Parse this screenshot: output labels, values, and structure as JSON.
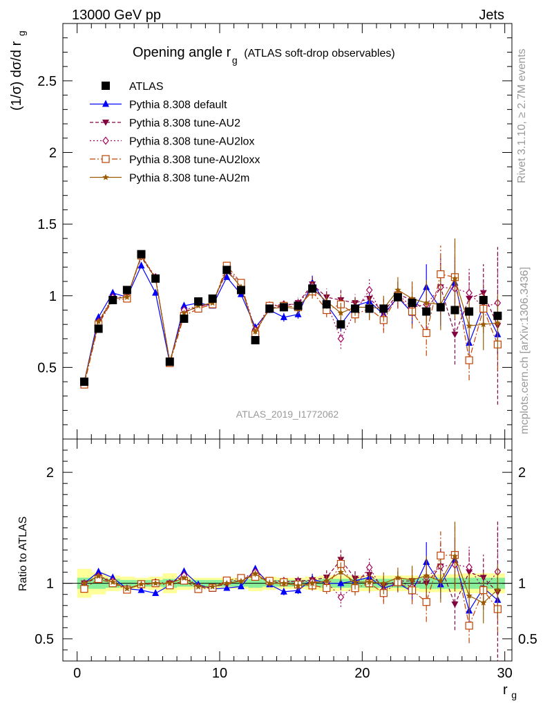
{
  "header": {
    "left": "13000 GeV pp",
    "right": "Jets"
  },
  "side_labels": {
    "rivet": "Rivet 3.1.10, ≥ 2.7M events",
    "mcplots": "mcplots.cern.ch [arXiv:1306.3436]"
  },
  "chart_data": {
    "type": "line",
    "title": "Opening angle r",
    "title_sub": "g",
    "title_suffix": "(ATLAS soft-drop observables)",
    "analysis": "ATLAS_2019_I1772062",
    "xlabel": "r",
    "xlabel_sub": "g",
    "ylabel": "(1/σ) dσ/d r",
    "ylabel_sub": "g",
    "ratio_ylabel": "Ratio to ATLAS",
    "xlim": [
      -1,
      30.5
    ],
    "ylim": [
      0,
      2.9
    ],
    "ratio_ylim": [
      0.3,
      2.3
    ],
    "x_ticks": [
      "0",
      "10",
      "20",
      "30"
    ],
    "y_ticks": [
      "0.5",
      "1",
      "1.5",
      "2",
      "2.5"
    ],
    "ratio_y_ticks": [
      "0.5",
      "1",
      "2"
    ],
    "x": [
      0.5,
      1.5,
      2.5,
      3.5,
      4.5,
      5.5,
      6.5,
      7.5,
      8.5,
      9.5,
      10.5,
      11.5,
      12.5,
      13.5,
      14.5,
      15.5,
      16.5,
      17.5,
      18.5,
      19.5,
      20.5,
      21.5,
      22.5,
      23.5,
      24.5,
      25.5,
      26.5,
      27.5,
      28.5,
      29.5
    ],
    "data": {
      "name": "ATLAS",
      "values": [
        0.4,
        0.77,
        0.97,
        1.04,
        1.29,
        1.12,
        0.54,
        0.84,
        0.96,
        0.98,
        1.18,
        1.04,
        0.69,
        0.91,
        0.92,
        0.93,
        1.05,
        0.94,
        0.8,
        0.91,
        0.91,
        0.91,
        0.99,
        0.95,
        0.89,
        0.92,
        0.9,
        0.89,
        0.97,
        0.86
      ],
      "ratio_band_inner": [
        0.05,
        0.05,
        0.04,
        0.03,
        0.03,
        0.03,
        0.04,
        0.03,
        0.03,
        0.03,
        0.03,
        0.03,
        0.04,
        0.03,
        0.03,
        0.03,
        0.03,
        0.04,
        0.04,
        0.04,
        0.04,
        0.04,
        0.04,
        0.04,
        0.05,
        0.05,
        0.05,
        0.05,
        0.05,
        0.05
      ],
      "ratio_band_outer": [
        0.13,
        0.1,
        0.07,
        0.06,
        0.05,
        0.06,
        0.09,
        0.06,
        0.05,
        0.05,
        0.05,
        0.05,
        0.07,
        0.06,
        0.05,
        0.05,
        0.06,
        0.07,
        0.07,
        0.07,
        0.07,
        0.07,
        0.07,
        0.07,
        0.08,
        0.08,
        0.08,
        0.09,
        0.09,
        0.09
      ]
    },
    "series": [
      {
        "name": "Pythia 8.308 default",
        "color": "#0000ff",
        "marker": "triangle-up",
        "dash": "",
        "values": [
          0.4,
          0.85,
          1.02,
          0.99,
          1.21,
          1.02,
          0.53,
          0.93,
          0.95,
          0.93,
          1.13,
          1.01,
          0.78,
          0.9,
          0.85,
          0.87,
          1.09,
          0.94,
          0.8,
          0.93,
          0.96,
          0.87,
          0.99,
          0.88,
          1.06,
          0.91,
          1.09,
          0.67,
          0.93,
          0.73
        ],
        "errors": [
          0.01,
          0.01,
          0.01,
          0.01,
          0.01,
          0.01,
          0.01,
          0.01,
          0.01,
          0.01,
          0.01,
          0.02,
          0.02,
          0.02,
          0.03,
          0.03,
          0.05,
          0.04,
          0.05,
          0.05,
          0.06,
          0.06,
          0.08,
          0.08,
          0.16,
          0.12,
          0.18,
          0.12,
          0.12,
          0.14
        ]
      },
      {
        "name": "Pythia 8.308 tune-AU2",
        "color": "#800040",
        "marker": "triangle-down",
        "dash": "5,3",
        "values": [
          0.4,
          0.81,
          0.98,
          0.99,
          1.27,
          1.12,
          0.54,
          0.89,
          0.92,
          0.95,
          1.17,
          1.07,
          0.75,
          0.91,
          0.93,
          0.95,
          1.08,
          0.99,
          0.97,
          0.95,
          0.98,
          0.89,
          1.01,
          0.97,
          0.89,
          1.06,
          0.73,
          0.98,
          1.02,
          0.79
        ],
        "errors": [
          0.01,
          0.01,
          0.01,
          0.01,
          0.01,
          0.01,
          0.01,
          0.01,
          0.01,
          0.01,
          0.02,
          0.02,
          0.02,
          0.03,
          0.03,
          0.04,
          0.05,
          0.06,
          0.07,
          0.06,
          0.08,
          0.09,
          0.09,
          0.12,
          0.16,
          0.2,
          0.21,
          0.18,
          0.2,
          0.55
        ]
      },
      {
        "name": "Pythia 8.308 tune-AU2lox",
        "color": "#a0005a",
        "marker": "diamond-open",
        "dash": "2,3",
        "values": [
          0.4,
          0.82,
          0.99,
          0.99,
          1.28,
          1.13,
          0.54,
          0.9,
          0.93,
          0.94,
          1.19,
          1.08,
          0.76,
          0.93,
          0.94,
          0.94,
          1.07,
          0.95,
          0.7,
          0.89,
          1.04,
          0.85,
          1.01,
          0.92,
          0.94,
          1.06,
          1.05,
          1.02,
          0.92,
          0.95
        ],
        "errors": [
          0.01,
          0.01,
          0.01,
          0.01,
          0.01,
          0.01,
          0.01,
          0.01,
          0.01,
          0.01,
          0.02,
          0.02,
          0.02,
          0.03,
          0.03,
          0.04,
          0.05,
          0.05,
          0.07,
          0.06,
          0.08,
          0.09,
          0.09,
          0.12,
          0.16,
          0.18,
          0.2,
          0.18,
          0.18,
          0.35
        ]
      },
      {
        "name": "Pythia 8.308 tune-AU2loxx",
        "color": "#c04000",
        "marker": "square-open",
        "dash": "8,3,2,3",
        "values": [
          0.38,
          0.8,
          0.97,
          0.98,
          1.28,
          1.12,
          0.53,
          0.86,
          0.91,
          0.94,
          1.21,
          1.09,
          0.73,
          0.93,
          0.93,
          0.92,
          1.03,
          0.9,
          0.94,
          0.87,
          0.91,
          0.83,
          1.0,
          0.89,
          0.74,
          1.15,
          1.13,
          0.55,
          0.91,
          0.66
        ],
        "errors": [
          0.01,
          0.01,
          0.01,
          0.01,
          0.01,
          0.01,
          0.01,
          0.01,
          0.01,
          0.01,
          0.02,
          0.02,
          0.02,
          0.03,
          0.03,
          0.04,
          0.05,
          0.05,
          0.07,
          0.06,
          0.08,
          0.09,
          0.09,
          0.12,
          0.16,
          0.2,
          0.26,
          0.14,
          0.16,
          0.18
        ]
      },
      {
        "name": "Pythia 8.308 tune-AU2m",
        "color": "#9a5a00",
        "marker": "star",
        "dash": "",
        "values": [
          0.4,
          0.82,
          0.98,
          0.99,
          1.28,
          1.12,
          0.54,
          0.88,
          0.93,
          0.95,
          1.18,
          1.06,
          0.75,
          0.91,
          0.92,
          0.91,
          1.05,
          0.96,
          0.88,
          0.92,
          0.92,
          0.91,
          1.04,
          0.98,
          0.95,
          0.94,
          1.12,
          0.79,
          0.8,
          0.81
        ],
        "errors": [
          0.01,
          0.01,
          0.01,
          0.01,
          0.01,
          0.01,
          0.01,
          0.01,
          0.01,
          0.01,
          0.02,
          0.02,
          0.02,
          0.03,
          0.03,
          0.04,
          0.05,
          0.05,
          0.07,
          0.06,
          0.08,
          0.09,
          0.09,
          0.12,
          0.16,
          0.18,
          0.28,
          0.18,
          0.18,
          0.2
        ]
      }
    ]
  }
}
